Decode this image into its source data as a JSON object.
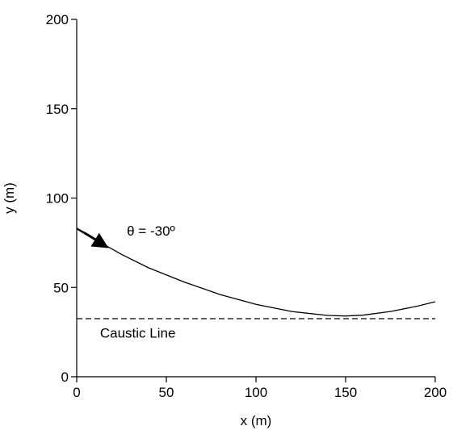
{
  "chart_data": {
    "type": "line",
    "title": "",
    "xlabel": "x (m)",
    "ylabel": "y (m)",
    "xlim": [
      0,
      200
    ],
    "ylim": [
      0,
      200
    ],
    "xticks": [
      0,
      50,
      100,
      150,
      200
    ],
    "yticks": [
      0,
      50,
      100,
      150,
      200
    ],
    "xtick_labels": [
      "0",
      "50",
      "100",
      "150",
      "200"
    ],
    "ytick_labels": [
      "0",
      "50",
      "100",
      "150",
      "200"
    ],
    "grid": false,
    "series": [
      {
        "style": "solid",
        "x": [
          0,
          5,
          10,
          17,
          25,
          40,
          60,
          80,
          100,
          120,
          140,
          150,
          160,
          175,
          190,
          200
        ],
        "y": [
          83,
          80.5,
          77.5,
          73,
          68.5,
          61,
          53,
          46,
          40.5,
          36.5,
          34.3,
          34,
          34.5,
          36.5,
          39.5,
          42
        ]
      },
      {
        "style": "dashed",
        "x": [
          0,
          200
        ],
        "y": [
          32.5,
          32.5
        ]
      }
    ],
    "annotations": [
      {
        "text": "θ = -30º",
        "x": 28,
        "y": 79,
        "arrow": {
          "from": [
            0,
            83
          ],
          "to": [
            17,
            72.5
          ]
        }
      },
      {
        "text": "Caustic Line",
        "x": 13,
        "y": 22
      }
    ],
    "colors": {
      "line": "#000000",
      "background": "#ffffff"
    }
  }
}
